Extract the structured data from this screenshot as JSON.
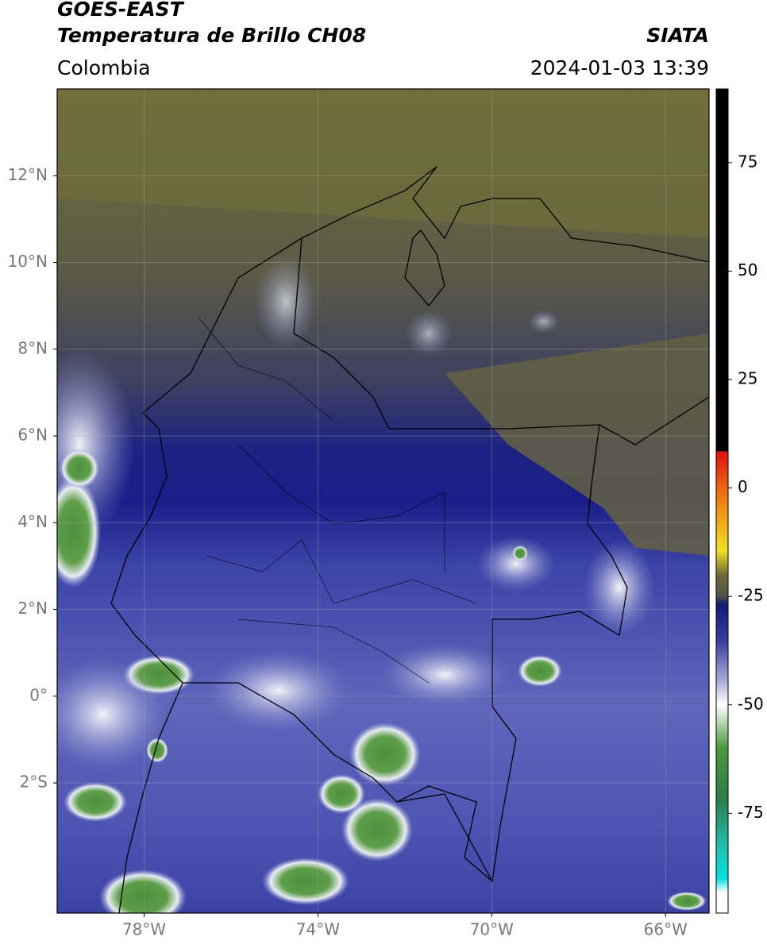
{
  "header": {
    "title_line1": "GOES-EAST",
    "title_line2": "Temperatura de Brillo CH08",
    "source": "SIATA",
    "region": "Colombia",
    "datetime": "2024-01-03 13:39"
  },
  "map": {
    "lon_range": [
      -80,
      -65
    ],
    "lat_range": [
      -5,
      14
    ],
    "lon_ticks": [
      {
        "value": -78,
        "label": "78°W"
      },
      {
        "value": -74,
        "label": "74°W"
      },
      {
        "value": -70,
        "label": "70°W"
      },
      {
        "value": -66,
        "label": "66°W"
      }
    ],
    "lat_ticks": [
      {
        "value": 12,
        "label": "12°N"
      },
      {
        "value": 10,
        "label": "10°N"
      },
      {
        "value": 8,
        "label": "8°N"
      },
      {
        "value": 6,
        "label": "6°N"
      },
      {
        "value": 4,
        "label": "4°N"
      },
      {
        "value": 2,
        "label": "2°N"
      },
      {
        "value": 0,
        "label": "0°"
      },
      {
        "value": -2,
        "label": "2°S"
      }
    ]
  },
  "colorbar": {
    "range": [
      -98,
      92
    ],
    "ticks": [
      75,
      50,
      25,
      0,
      -25,
      -50,
      -75
    ]
  }
}
